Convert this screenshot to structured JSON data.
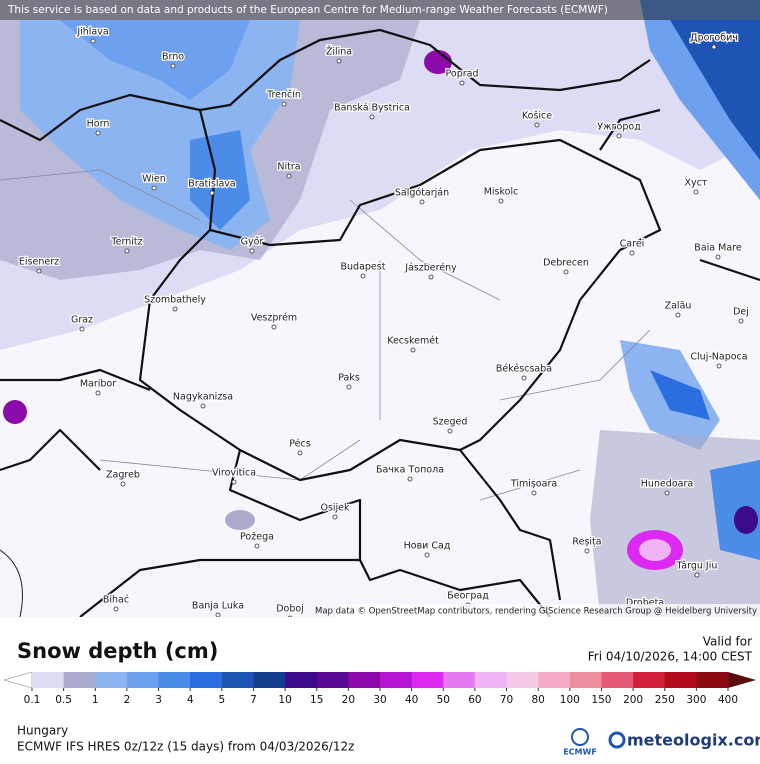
{
  "banner": "This service is based on data and products of the European Centre for Medium-range Weather Forecasts (ECMWF)",
  "cities": [
    "Jihlava",
    "Brno",
    "Žilina",
    "Poprad",
    "Дрогобич",
    "Horn",
    "Trenčín",
    "Banská Bystrica",
    "Košice",
    "Ужгород",
    "Wien",
    "Bratislava",
    "Nitra",
    "Salgótarján",
    "Miskolc",
    "Хуст",
    "Ternitz",
    "Győr",
    "Carei",
    "Baia Mare",
    "Eisenerz",
    "Budapest",
    "Jászberény",
    "Debrecen",
    "Szombathely",
    "Zalău",
    "Graz",
    "Veszprém",
    "Dej",
    "Kecskemét",
    "Cluj-Napoca",
    "Maribor",
    "Paks",
    "Békéscsaba",
    "Nagykanizsa",
    "Pécs",
    "Szeged",
    "Zagreb",
    "Virovitica",
    "Бачка Топола",
    "Timișoara",
    "Hunedoara",
    "Osijek",
    "Požega",
    "Reșița",
    "Нови Сад",
    "Târgu Jiu",
    "Bihać",
    "Banja Luka",
    "Doboj",
    "Београд",
    "Drobeta"
  ],
  "attribution": "Map data © OpenStreetMap contributors, rendering GIScience Research Group @ Heidelberg University",
  "legend": {
    "title": "Snow depth (cm)",
    "levels": [
      0.1,
      0.5,
      1,
      2,
      3,
      4,
      5,
      7,
      10,
      15,
      20,
      30,
      40,
      50,
      60,
      70,
      80,
      100,
      150,
      200,
      250,
      300,
      400
    ],
    "colors": [
      "#dcdcf5",
      "#aaaacc",
      "#8cb4f0",
      "#6ea0f0",
      "#4a8ce8",
      "#2a6ee0",
      "#1e55b4",
      "#123c8c",
      "#3c0a8c",
      "#5a0a96",
      "#8c0aaa",
      "#b414d2",
      "#dc28f0",
      "#e678f0",
      "#f0b4f5",
      "#f5c8e6",
      "#f5aac8",
      "#f08ca0",
      "#e65a78",
      "#d21e3c",
      "#b40a1e",
      "#8c0a14"
    ],
    "under_color": "#ffffff",
    "over_color": "#5a0a0a"
  },
  "valid_label": "Valid for",
  "valid_time": "Fri 04/10/2026, 14:00 CEST",
  "region": "Hungary",
  "model": "ECMWF IFS HRES 0z/12z (15 days) from 04/03/2026/12z",
  "logo_ecmwf": "ECMWF",
  "logo_site": "meteologix.com"
}
